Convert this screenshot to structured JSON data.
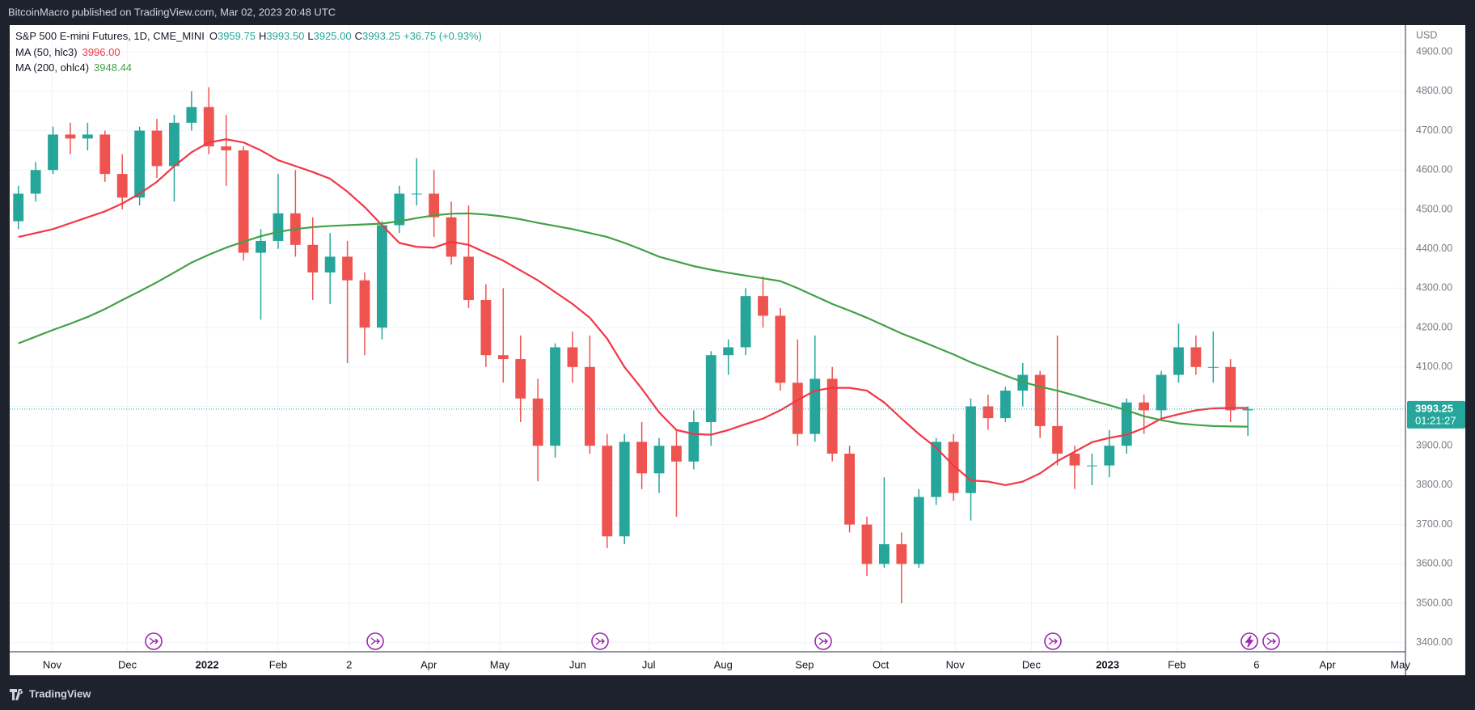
{
  "header": {
    "published": "BitcoinMacro published on TradingView.com, Mar 02, 2023 20:48 UTC",
    "footer": "TradingView"
  },
  "chart_data": {
    "type": "candlestick",
    "title": "S&P 500 E-mini Futures, 1D, CME_MINI",
    "quote": [
      {
        "key": "O",
        "value": "3959.75"
      },
      {
        "key": "H",
        "value": "3993.50"
      },
      {
        "key": "L",
        "value": "3925.00"
      },
      {
        "key": "C",
        "value": "3993.25"
      }
    ],
    "change": "+36.75 (+0.93%)",
    "currency": "USD",
    "last_price": {
      "value": 3993.25,
      "label": "3993.25"
    },
    "countdown": "01:21:27",
    "up_color": "#26a69a",
    "down_color": "#ef5350",
    "open": [
      4470,
      4540,
      4600,
      4690,
      4680,
      4690,
      4590,
      4530,
      4700,
      4610,
      4720,
      4760,
      4660,
      4650,
      4390,
      4420,
      4490,
      4410,
      4340,
      4380,
      4320,
      4200,
      4460,
      4540,
      4540,
      4480,
      4380,
      4270,
      4130,
      4120,
      4020,
      3900,
      4150,
      4100,
      3900,
      3670,
      3910,
      3830,
      3900,
      3860,
      3960,
      4130,
      4150,
      4280,
      4230,
      4060,
      3930,
      4070,
      3880,
      3700,
      3600,
      3650,
      3600,
      3770,
      3910,
      3780,
      4000,
      3970,
      4040,
      4080,
      3950,
      3880,
      3850,
      3850,
      3900,
      4010,
      3990,
      4080,
      4150,
      4100,
      4100,
      3990
    ],
    "high": [
      4560,
      4620,
      4710,
      4720,
      4720,
      4700,
      4640,
      4710,
      4730,
      4740,
      4800,
      4810,
      4740,
      4660,
      4450,
      4590,
      4600,
      4480,
      4440,
      4420,
      4340,
      4470,
      4560,
      4630,
      4600,
      4520,
      4510,
      4310,
      4300,
      4180,
      4070,
      4160,
      4190,
      4180,
      3930,
      3930,
      3960,
      3920,
      3940,
      3990,
      4140,
      4170,
      4300,
      4330,
      4250,
      4170,
      4180,
      4100,
      3900,
      3720,
      3820,
      3680,
      3790,
      3920,
      3930,
      4020,
      4030,
      4050,
      4110,
      4090,
      4180,
      3900,
      3880,
      3940,
      4020,
      4030,
      4090,
      4210,
      4180,
      4190,
      4120,
      4000
    ],
    "low": [
      4450,
      4520,
      4590,
      4640,
      4650,
      4570,
      4500,
      4510,
      4580,
      4520,
      4700,
      4640,
      4560,
      4370,
      4220,
      4400,
      4380,
      4270,
      4260,
      4110,
      4130,
      4170,
      4440,
      4510,
      4430,
      4360,
      4250,
      4100,
      4060,
      3960,
      3810,
      3870,
      4060,
      3880,
      3640,
      3650,
      3790,
      3780,
      3720,
      3840,
      3900,
      4080,
      4130,
      4200,
      4040,
      3900,
      3910,
      3860,
      3680,
      3570,
      3590,
      3500,
      3590,
      3750,
      3760,
      3710,
      3940,
      3960,
      4000,
      3920,
      3850,
      3790,
      3800,
      3820,
      3880,
      3930,
      3970,
      4060,
      4080,
      4060,
      3960,
      3925
    ],
    "close": [
      4540,
      4600,
      4690,
      4680,
      4690,
      4590,
      4530,
      4700,
      4610,
      4720,
      4760,
      4660,
      4650,
      4390,
      4420,
      4490,
      4410,
      4340,
      4380,
      4320,
      4200,
      4460,
      4540,
      4540,
      4480,
      4380,
      4270,
      4130,
      4120,
      4020,
      3900,
      4150,
      4100,
      3900,
      3670,
      3910,
      3830,
      3900,
      3860,
      3960,
      4130,
      4150,
      4280,
      4230,
      4060,
      3930,
      4070,
      3880,
      3700,
      3600,
      3650,
      3600,
      3770,
      3910,
      3780,
      4000,
      3970,
      4040,
      4080,
      3950,
      3880,
      3850,
      3850,
      3900,
      4010,
      3990,
      4080,
      4150,
      4100,
      4100,
      3990,
      3993.25
    ],
    "series": [
      {
        "name": "MA (50, hlc3)",
        "value_label": "3996.00",
        "color": "#f23645",
        "values": [
          4430,
          4440,
          4450,
          4465,
          4480,
          4495,
          4515,
          4540,
          4570,
          4610,
          4645,
          4670,
          4678,
          4670,
          4650,
          4625,
          4610,
          4595,
          4578,
          4545,
          4506,
          4460,
          4415,
          4405,
          4403,
          4418,
          4410,
          4390,
          4370,
          4345,
          4320,
          4290,
          4260,
          4225,
          4172,
          4100,
          4045,
          3985,
          3940,
          3930,
          3928,
          3940,
          3955,
          3969,
          3990,
          4016,
          4040,
          4047,
          4047,
          4040,
          4010,
          3969,
          3930,
          3895,
          3850,
          3812,
          3809,
          3800,
          3809,
          3830,
          3861,
          3885,
          3909,
          3920,
          3928,
          3945,
          3969,
          3980,
          3990,
          3995,
          3996,
          3996
        ]
      },
      {
        "name": "MA (200, ohlc4)",
        "value_label": "3948.44",
        "color": "#43a047",
        "values": [
          4160,
          4177,
          4194,
          4210,
          4227,
          4247,
          4270,
          4292,
          4315,
          4340,
          4365,
          4385,
          4403,
          4418,
          4432,
          4443,
          4450,
          4455,
          4458,
          4460,
          4462,
          4464,
          4470,
          4478,
          4485,
          4489,
          4490,
          4487,
          4482,
          4475,
          4466,
          4458,
          4450,
          4440,
          4430,
          4415,
          4398,
          4380,
          4368,
          4356,
          4347,
          4339,
          4332,
          4325,
          4318,
          4300,
          4280,
          4260,
          4243,
          4225,
          4205,
          4185,
          4168,
          4150,
          4132,
          4112,
          4095,
          4078,
          4062,
          4050,
          4040,
          4028,
          4015,
          4003,
          3990,
          3975,
          3965,
          3957,
          3953,
          3950,
          3949,
          3948.44
        ]
      }
    ],
    "xlim": [
      0,
      80.6
    ],
    "xticks": [
      {
        "value": 2.45,
        "label": "Nov"
      },
      {
        "value": 6.8,
        "label": "Dec"
      },
      {
        "value": 11.4,
        "label": "2022"
      },
      {
        "value": 15.5,
        "label": "Feb"
      },
      {
        "value": 19.6,
        "label": "2"
      },
      {
        "value": 24.2,
        "label": "Apr"
      },
      {
        "value": 28.3,
        "label": "May"
      },
      {
        "value": 32.8,
        "label": "Jun"
      },
      {
        "value": 36.9,
        "label": "Jul"
      },
      {
        "value": 41.2,
        "label": "Aug"
      },
      {
        "value": 45.9,
        "label": "Sep"
      },
      {
        "value": 50.3,
        "label": "Oct"
      },
      {
        "value": 54.6,
        "label": "Nov"
      },
      {
        "value": 59.0,
        "label": "Dec"
      },
      {
        "value": 63.4,
        "label": "2023"
      },
      {
        "value": 67.4,
        "label": "Feb"
      },
      {
        "value": 72.0,
        "label": "6"
      },
      {
        "value": 76.1,
        "label": "Apr"
      },
      {
        "value": 80.3,
        "label": "May"
      }
    ],
    "ylim": [
      3377,
      4968
    ],
    "yticks": [
      {
        "value": 3400,
        "label": "3400.00"
      },
      {
        "value": 3500,
        "label": "3500.00"
      },
      {
        "value": 3600,
        "label": "3600.00"
      },
      {
        "value": 3700,
        "label": "3700.00"
      },
      {
        "value": 3800,
        "label": "3800.00"
      },
      {
        "value": 3900,
        "label": "3900.00"
      },
      {
        "value": 4000,
        "label": "4000.00"
      },
      {
        "value": 4100,
        "label": "4100.00"
      },
      {
        "value": 4200,
        "label": "4200.00"
      },
      {
        "value": 4300,
        "label": "4300.00"
      },
      {
        "value": 4400,
        "label": "4400.00"
      },
      {
        "value": 4500,
        "label": "4500.00"
      },
      {
        "value": 4600,
        "label": "4600.00"
      },
      {
        "value": 4700,
        "label": "4700.00"
      },
      {
        "value": 4800,
        "label": "4800.00"
      },
      {
        "value": 4900,
        "label": "4900.00"
      }
    ],
    "grid": true
  }
}
